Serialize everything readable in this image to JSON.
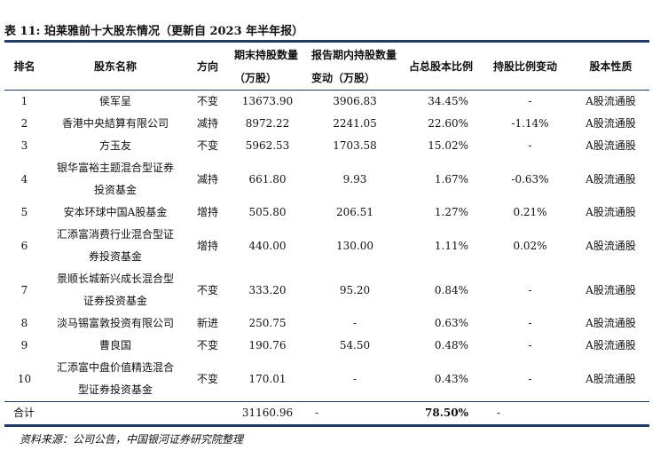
{
  "caption": "表 11: 珀莱雅前十大股东情况（更新自 2023 年半年报）",
  "table": {
    "headers": [
      "排名",
      "股东名称",
      "方向",
      "期末持股数量（万股）",
      "报告期内持股数量变动（万股）",
      "占总股本比例",
      "持股比例变动",
      "股本性质"
    ],
    "rows": [
      [
        "1",
        "侯军呈",
        "不变",
        "13673.90",
        "3906.83",
        "34.45%",
        "-",
        "A股流通股"
      ],
      [
        "2",
        "香港中央結算有限公司",
        "减持",
        "8972.22",
        "2241.05",
        "22.60%",
        "-1.14%",
        "A股流通股"
      ],
      [
        "3",
        "方玉友",
        "不变",
        "5962.53",
        "1703.58",
        "15.02%",
        "-",
        "A股流通股"
      ],
      [
        "4",
        "银华富裕主题混合型证券投资基金",
        "减持",
        "661.80",
        "9.93",
        "1.67%",
        "-0.63%",
        "A股流通股"
      ],
      [
        "5",
        "安本环球中国A股基金",
        "增持",
        "505.80",
        "206.51",
        "1.27%",
        "0.21%",
        "A股流通股"
      ],
      [
        "6",
        "汇添富消费行业混合型证券投资基金",
        "增持",
        "440.00",
        "130.00",
        "1.11%",
        "0.02%",
        "A股流通股"
      ],
      [
        "7",
        "景顺长城新兴成长混合型证券投资基金",
        "不变",
        "333.20",
        "95.20",
        "0.84%",
        "-",
        "A股流通股"
      ],
      [
        "8",
        "淡马锡富敦投资有限公司",
        "新进",
        "250.75",
        "-",
        "0.63%",
        "-",
        "A股流通股"
      ],
      [
        "9",
        "曹良国",
        "不变",
        "190.76",
        "54.50",
        "0.48%",
        "-",
        "A股流通股"
      ],
      [
        "10",
        "汇添富中盘价值精选混合型证券投资基金",
        "不变",
        "170.01",
        "-",
        "0.43%",
        "-",
        "A股流通股"
      ]
    ],
    "total": {
      "label": "合计",
      "shares": "31160.96",
      "change": "-",
      "ratio": "78.50%",
      "ratio_change": "-"
    }
  },
  "source": "资料来源：公司公告，中国银河证券研究院整理"
}
